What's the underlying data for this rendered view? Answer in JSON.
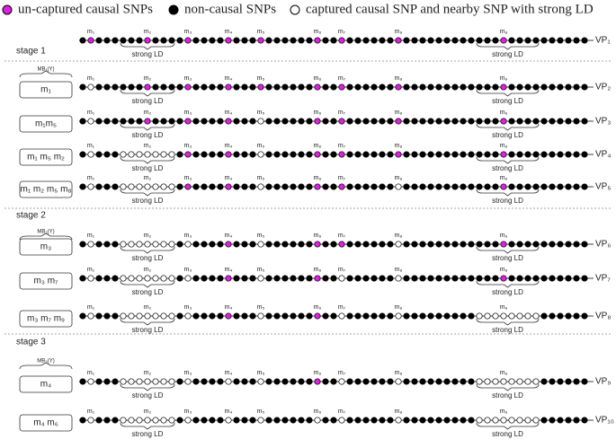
{
  "legend": [
    "un-captured causal SNPs",
    "non-causal SNPs",
    "captured causal SNP and nearby SNP with strong LD"
  ],
  "stages": [
    {
      "label": "stage 1",
      "mb": "MB₁(Y)",
      "rows": [
        {
          "vp": "VP₁",
          "markers": [
            "m₁",
            "m₂",
            "m₃",
            "m₄",
            "m₅",
            "m₆",
            "m₇",
            "m₈",
            "m₉"
          ],
          "ld": [
            "strong LD",
            "strong LD"
          ]
        },
        {
          "box": "m₁",
          "vp": "VP₂",
          "markers": [
            "m₁",
            "m₂",
            "m₃",
            "m₄",
            "m₅",
            "m₆",
            "m₇",
            "m₈",
            "m₉"
          ],
          "ld": [
            "strong LD",
            "strong LD"
          ]
        },
        {
          "box": "m₁m₅",
          "vp": "VP₃",
          "markers": [
            "m₁",
            "m₂",
            "m₃",
            "m₄",
            "m₅",
            "m₆",
            "m₇",
            "m₈",
            "m₉"
          ],
          "ld": [
            "strong LD",
            "strong LD"
          ]
        },
        {
          "box": "m₁ m₅ m₂",
          "vp": "VP₄",
          "markers": [
            "m₁",
            "m₂",
            "m₃",
            "m₄",
            "m₅",
            "m₆",
            "m₇",
            "m₈",
            "m₉"
          ],
          "ld": [
            "strong LD",
            "strong LD"
          ]
        },
        {
          "box": "m₁ m₂ m₅ m₈",
          "vp": "VP₅",
          "markers": [
            "m₁",
            "m₂",
            "m₃",
            "m₄",
            "m₅",
            "m₆",
            "m₇",
            "m₈",
            "m₉"
          ],
          "ld": [
            "strong LD",
            "strong LD"
          ]
        }
      ]
    },
    {
      "label": "stage 2",
      "mb": "MB₂(Y)",
      "rows": [
        {
          "box": "m₃",
          "vp": "VP₆",
          "markers": [
            "m₁",
            "m₂",
            "m₃",
            "m₄",
            "m₅",
            "m₆",
            "m₇",
            "m₈",
            "m₉"
          ],
          "ld": [
            "strong LD",
            "strong LD"
          ]
        },
        {
          "box": "m₃ m₇",
          "vp": "VP₇",
          "markers": [
            "m₁",
            "m₂",
            "m₃",
            "m₄",
            "m₅",
            "m₆",
            "m₇",
            "m₈",
            "m₉"
          ],
          "ld": [
            "strong LD",
            "strong LD"
          ]
        },
        {
          "box": "m₃ m₇ m₉",
          "vp": "VP₈",
          "markers": [
            "m₁",
            "m₂",
            "m₃",
            "m₄",
            "m₅",
            "m₆",
            "m₇",
            "m₈",
            "m₉"
          ],
          "ld": [
            "strong LD",
            "strong LD"
          ]
        }
      ]
    },
    {
      "label": "stage 3",
      "mb": "MB₃(Y)",
      "rows": [
        {
          "box": "m₄",
          "vp": "VP₉",
          "markers": [
            "m₁",
            "m₂",
            "m₃",
            "m₄",
            "m₅",
            "m₆",
            "m₇",
            "m₈",
            "m₉"
          ],
          "ld": [
            "strong LD",
            "strong LD"
          ]
        },
        {
          "box": "m₄ m₆",
          "vp": "VP₁₀",
          "markers": [
            "m₁",
            "m₂",
            "m₃",
            "m₄",
            "m₅",
            "m₆",
            "m₇",
            "m₈",
            "m₉"
          ],
          "ld": [
            "strong LD",
            "strong LD"
          ]
        }
      ]
    }
  ]
}
